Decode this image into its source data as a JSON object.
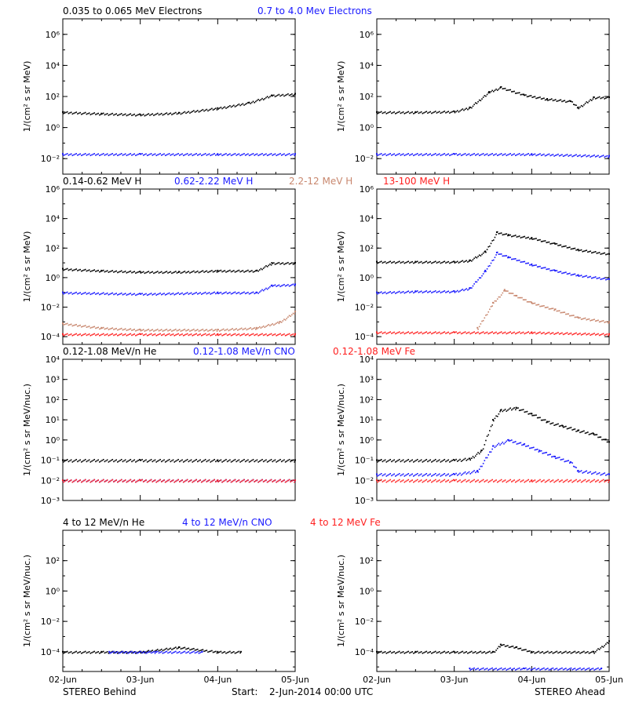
{
  "colors": {
    "black": "#000000",
    "blue": "#1a1aff",
    "tan": "#c8876e",
    "red": "#ff2020",
    "background": "#ffffff"
  },
  "footer": {
    "left": "STEREO Behind",
    "center_label": "Start:",
    "center_value": "2-Jun-2014 00:00 UTC",
    "right": "STEREO Ahead"
  },
  "x_axis": {
    "ticks": [
      "02-Jun",
      "03-Jun",
      "04-Jun",
      "05-Jun"
    ]
  },
  "chart_data": [
    {
      "panel": "electrons-behind",
      "type": "scatter",
      "ylabel": "1/(cm² s sr MeV)",
      "yscale": "log",
      "ylim": [
        0.001,
        10000000
      ],
      "yticks": [
        "10⁻²",
        "10⁰",
        "10²",
        "10⁴",
        "10⁶"
      ],
      "title_labels": [
        {
          "text": "0.035 to 0.065 MeV Electrons",
          "color": "#000000"
        },
        {
          "text": "0.7 to 4.0 Mev Electrons",
          "color": "#1a1aff"
        }
      ],
      "series": [
        {
          "name": "0.035 to 0.065 MeV Electrons",
          "color": "#000000",
          "x": [
            0,
            0.5,
            1.0,
            1.5,
            2.0,
            2.4,
            2.7,
            3.0
          ],
          "y": [
            10,
            8,
            7,
            9,
            18,
            40,
            120,
            150
          ]
        },
        {
          "name": "0.7 to 4.0 Mev Electrons",
          "color": "#1a1aff",
          "x": [
            0,
            1.0,
            2.0,
            3.0
          ],
          "y": [
            0.02,
            0.02,
            0.02,
            0.02
          ]
        }
      ]
    },
    {
      "panel": "electrons-ahead",
      "type": "scatter",
      "ylabel": "1/(cm² s sr MeV)",
      "yscale": "log",
      "ylim": [
        0.001,
        10000000
      ],
      "yticks": [
        "10⁻²",
        "10⁰",
        "10²",
        "10⁴",
        "10⁶"
      ],
      "title_labels": [],
      "series": [
        {
          "color": "#000000",
          "x": [
            0,
            0.5,
            1.0,
            1.2,
            1.45,
            1.6,
            1.9,
            2.2,
            2.5,
            2.6,
            2.8,
            3.0
          ],
          "y": [
            10,
            10,
            11,
            20,
            200,
            400,
            130,
            70,
            50,
            20,
            90,
            90
          ]
        },
        {
          "color": "#1a1aff",
          "x": [
            0,
            1.0,
            2.0,
            3.0
          ],
          "y": [
            0.02,
            0.02,
            0.02,
            0.015
          ]
        }
      ]
    },
    {
      "panel": "protons-behind",
      "type": "scatter",
      "ylabel": "1/(cm² s sr MeV)",
      "yscale": "log",
      "ylim": [
        3e-05,
        1000000
      ],
      "yticks": [
        "10⁻⁴",
        "10⁻²",
        "10⁰",
        "10²",
        "10⁴",
        "10⁶"
      ],
      "title_labels": [
        {
          "text": "0.14-0.62 MeV H",
          "color": "#000000"
        },
        {
          "text": "0.62-2.22 MeV H",
          "color": "#1a1aff"
        },
        {
          "text": "2.2-12 MeV H",
          "color": "#c8876e"
        },
        {
          "text": "13-100 MeV H",
          "color": "#ff2020"
        }
      ],
      "series": [
        {
          "name": "0.14-0.62 MeV H",
          "color": "#000000",
          "x": [
            0,
            0.5,
            1.0,
            1.5,
            2.0,
            2.5,
            2.7,
            3.0
          ],
          "y": [
            4,
            3,
            2.5,
            2.5,
            3,
            3,
            10,
            10
          ]
        },
        {
          "name": "0.62-2.22 MeV H",
          "color": "#1a1aff",
          "x": [
            0,
            1.0,
            2.0,
            2.5,
            2.7,
            3.0
          ],
          "y": [
            0.1,
            0.08,
            0.1,
            0.1,
            0.3,
            0.35
          ]
        },
        {
          "name": "2.2-12 MeV H",
          "color": "#c8876e",
          "x": [
            0,
            0.5,
            1.0,
            2.0,
            2.5,
            2.8,
            3.0
          ],
          "y": [
            0.0008,
            0.0004,
            0.0003,
            0.0003,
            0.0004,
            0.001,
            0.005
          ]
        },
        {
          "name": "13-100 MeV H",
          "color": "#ff2020",
          "x": [
            0,
            1.0,
            2.0,
            3.0
          ],
          "y": [
            0.00015,
            0.00015,
            0.00015,
            0.00015
          ]
        }
      ]
    },
    {
      "panel": "protons-ahead",
      "type": "scatter",
      "ylabel": "1/(cm² s sr MeV)",
      "yscale": "log",
      "ylim": [
        3e-05,
        1000000
      ],
      "yticks": [
        "10⁻⁴",
        "10⁻²",
        "10⁰",
        "10²",
        "10⁴",
        "10⁶"
      ],
      "title_labels": [],
      "series": [
        {
          "color": "#000000",
          "x": [
            0,
            0.5,
            1.0,
            1.2,
            1.4,
            1.55,
            1.7,
            2.0,
            2.3,
            2.6,
            3.0
          ],
          "y": [
            12,
            12,
            12,
            15,
            60,
            1200,
            800,
            500,
            200,
            80,
            40
          ]
        },
        {
          "color": "#1a1aff",
          "x": [
            0,
            0.5,
            1.0,
            1.2,
            1.4,
            1.55,
            1.7,
            2.0,
            2.3,
            2.6,
            3.0
          ],
          "y": [
            0.1,
            0.12,
            0.12,
            0.2,
            3,
            50,
            25,
            8,
            3,
            1.5,
            0.8
          ]
        },
        {
          "color": "#c8876e",
          "x": [
            1.3,
            1.5,
            1.65,
            1.8,
            2.0,
            2.3,
            2.6,
            3.0
          ],
          "y": [
            0.0004,
            0.02,
            0.15,
            0.06,
            0.02,
            0.007,
            0.002,
            0.001
          ]
        },
        {
          "color": "#ff2020",
          "x": [
            0,
            1.0,
            2.0,
            3.0
          ],
          "y": [
            0.0002,
            0.0002,
            0.0002,
            0.00015
          ]
        }
      ]
    },
    {
      "panel": "heavy-low-behind",
      "type": "scatter",
      "ylabel": "1/(cm² s sr MeV/nuc.)",
      "yscale": "log",
      "ylim": [
        0.001,
        10000
      ],
      "yticks": [
        "10⁻³",
        "10⁻²",
        "10⁻¹",
        "10⁰",
        "10¹",
        "10²",
        "10³",
        "10⁴"
      ],
      "title_labels": [
        {
          "text": "0.12-1.08 MeV/n He",
          "color": "#000000"
        },
        {
          "text": "0.12-1.08 MeV/n CNO",
          "color": "#1a1aff"
        },
        {
          "text": "0.12-1.08 MeV Fe",
          "color": "#ff2020"
        }
      ],
      "series": [
        {
          "name": "0.12-1.08 MeV/n He",
          "color": "#000000",
          "x": [
            0,
            1.0,
            2.0,
            3.0
          ],
          "y": [
            0.1,
            0.1,
            0.1,
            0.1
          ]
        },
        {
          "name": "0.12-1.08 MeV/n CNO",
          "color": "#1a1aff",
          "x": [
            0,
            1.0,
            2.0,
            3.0
          ],
          "y": [
            0.01,
            0.01,
            0.01,
            0.01
          ]
        },
        {
          "name": "0.12-1.08 MeV Fe",
          "color": "#ff2020",
          "x": [
            0,
            1.0,
            2.0,
            3.0
          ],
          "y": [
            0.01,
            0.01,
            0.01,
            0.01
          ]
        }
      ]
    },
    {
      "panel": "heavy-low-ahead",
      "type": "scatter",
      "ylabel": "1/(cm² s sr MeV/nuc.)",
      "yscale": "log",
      "ylim": [
        0.001,
        10000
      ],
      "yticks": [
        "10⁻³",
        "10⁻²",
        "10⁻¹",
        "10⁰",
        "10¹",
        "10²",
        "10³",
        "10⁴"
      ],
      "title_labels": [],
      "series": [
        {
          "color": "#000000",
          "x": [
            0,
            1.0,
            1.2,
            1.35,
            1.5,
            1.6,
            1.8,
            2.0,
            2.2,
            2.4,
            2.6,
            2.8,
            3.0
          ],
          "y": [
            0.1,
            0.1,
            0.12,
            0.3,
            10,
            30,
            40,
            20,
            8,
            5,
            3,
            2,
            0.8
          ]
        },
        {
          "color": "#1a1aff",
          "x": [
            0,
            1.0,
            1.3,
            1.5,
            1.7,
            1.9,
            2.1,
            2.3,
            2.5,
            2.6,
            3.0
          ],
          "y": [
            0.02,
            0.02,
            0.03,
            0.5,
            1.0,
            0.6,
            0.3,
            0.15,
            0.08,
            0.03,
            0.02
          ]
        },
        {
          "color": "#ff2020",
          "x": [
            0,
            1.0,
            2.0,
            3.0
          ],
          "y": [
            0.01,
            0.01,
            0.01,
            0.01
          ]
        }
      ]
    },
    {
      "panel": "heavy-high-behind",
      "type": "scatter",
      "ylabel": "1/(cm² s sr MeV/nuc.)",
      "yscale": "log",
      "ylim": [
        5e-06,
        10000
      ],
      "yticks": [
        "10⁻⁴",
        "10⁻²",
        "10⁰",
        "10²"
      ],
      "title_labels": [
        {
          "text": "4 to 12 MeV/n He",
          "color": "#000000"
        },
        {
          "text": "4 to 12 MeV/n CNO",
          "color": "#1a1aff"
        },
        {
          "text": "4 to 12 MeV Fe",
          "color": "#ff2020"
        }
      ],
      "series": [
        {
          "name": "4 to 12 MeV/n He",
          "color": "#000000",
          "x": [
            0,
            0.5,
            1.0,
            1.5,
            2.0,
            2.3
          ],
          "y": [
            0.0001,
            0.0001,
            0.0001,
            0.0002,
            0.0001,
            0.0001
          ]
        },
        {
          "name": "4 to 12 MeV/n CNO",
          "color": "#1a1aff",
          "x": [
            0.6,
            1.2,
            1.8
          ],
          "y": [
            0.0001,
            0.0001,
            0.0001
          ]
        }
      ]
    },
    {
      "panel": "heavy-high-ahead",
      "type": "scatter",
      "ylabel": "1/(cm² s sr MeV/nuc.)",
      "yscale": "log",
      "ylim": [
        5e-06,
        10000
      ],
      "yticks": [
        "10⁻⁴",
        "10⁻²",
        "10⁰",
        "10²"
      ],
      "title_labels": [],
      "series": [
        {
          "color": "#000000",
          "x": [
            0,
            0.5,
            1.0,
            1.5,
            1.6,
            1.8,
            2.0,
            2.8,
            3.0
          ],
          "y": [
            0.0001,
            0.0001,
            0.0001,
            0.0001,
            0.0003,
            0.0002,
            0.0001,
            0.0001,
            0.0005
          ]
        },
        {
          "color": "#1a1aff",
          "x": [
            1.2,
            1.9,
            2.9
          ],
          "y": [
            8e-06,
            8e-06,
            8e-06
          ]
        }
      ]
    }
  ]
}
